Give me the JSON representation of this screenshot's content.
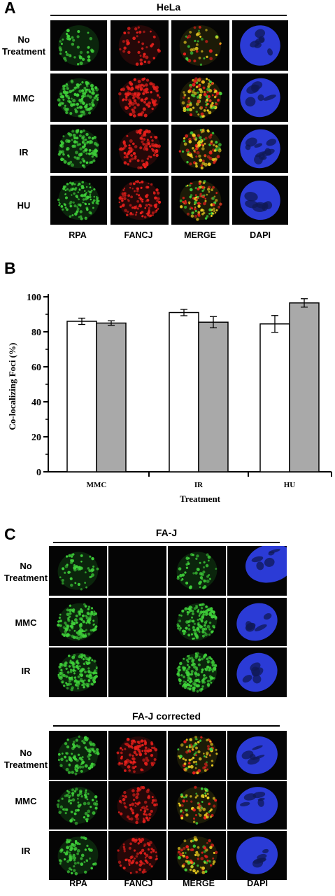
{
  "panels": {
    "a": {
      "letter": "A",
      "title": "HeLa",
      "rows": [
        "No Treatment",
        "MMC",
        "IR",
        "HU"
      ],
      "columns": [
        "RPA",
        "FANCJ",
        "MERGE",
        "DAPI"
      ]
    },
    "b": {
      "letter": "B",
      "ylabel": "Co-localizing Foci (%)",
      "xlabel": "Treatment",
      "yticks": [
        "0",
        "20",
        "40",
        "60",
        "80",
        "100"
      ]
    },
    "c": {
      "letter": "C",
      "group1": {
        "title": "FA-J",
        "rows": [
          "No Treatment",
          "MMC",
          "IR"
        ]
      },
      "group2": {
        "title": "FA-J corrected",
        "rows": [
          "No Treatment",
          "MMC",
          "IR"
        ]
      },
      "columns": [
        "RPA",
        "FANCJ",
        "MERGE",
        "DAPI"
      ]
    }
  },
  "colors": {
    "rpa": "#3fd13a",
    "fancj": "#e8201c",
    "merge": "#f0d020",
    "dapi": "#2b3bd6",
    "bar_white": "#ffffff",
    "bar_gray": "#a9a9a9"
  },
  "chart_data": {
    "type": "bar",
    "categories": [
      "MMC",
      "IR",
      "HU"
    ],
    "series": [
      {
        "values": [
          86,
          91,
          84.5
        ],
        "errors": [
          1.8,
          1.8,
          4.8
        ]
      },
      {
        "values": [
          85,
          85.5,
          96.5
        ],
        "errors": [
          1.3,
          3.2,
          2.4
        ]
      }
    ],
    "ylabel": "Co-localizing Foci (%)",
    "xlabel": "Treatment",
    "ylim": [
      0,
      100
    ],
    "yticks": [
      0,
      20,
      40,
      60,
      80,
      100
    ],
    "grid": false
  }
}
